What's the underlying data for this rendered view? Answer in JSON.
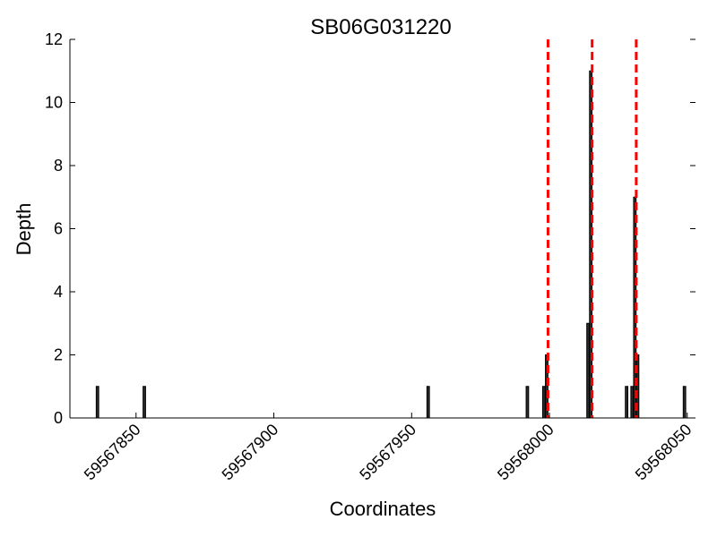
{
  "chart_data": {
    "type": "bar",
    "title": "SB06G031220",
    "xlabel": "Coordinates",
    "ylabel": "Depth",
    "xlim": [
      59567826,
      59568053
    ],
    "ylim": [
      0,
      12
    ],
    "x_ticks": [
      59567850,
      59567900,
      59567950,
      59568000,
      59568050
    ],
    "y_ticks": [
      0,
      2,
      4,
      6,
      8,
      10,
      12
    ],
    "grid": false,
    "bar_color": "#2b2b2b",
    "bar_edge_color": "#000000",
    "bars": [
      {
        "x": 59567836,
        "value": 1
      },
      {
        "x": 59567853,
        "value": 1
      },
      {
        "x": 59567956,
        "value": 1
      },
      {
        "x": 59567992,
        "value": 1
      },
      {
        "x": 59567998,
        "value": 1
      },
      {
        "x": 59567999,
        "value": 2
      },
      {
        "x": 59568014,
        "value": 3
      },
      {
        "x": 59568015,
        "value": 11
      },
      {
        "x": 59568028,
        "value": 1
      },
      {
        "x": 59568030,
        "value": 1
      },
      {
        "x": 59568031,
        "value": 7
      },
      {
        "x": 59568032,
        "value": 2
      },
      {
        "x": 59568049,
        "value": 1
      }
    ],
    "vlines": [
      {
        "x": 59567999.5,
        "color": "#ff0000",
        "style": "dashed"
      },
      {
        "x": 59568015.5,
        "color": "#ff0000",
        "style": "dashed"
      },
      {
        "x": 59568031.5,
        "color": "#ff0000",
        "style": "dashed"
      }
    ]
  }
}
